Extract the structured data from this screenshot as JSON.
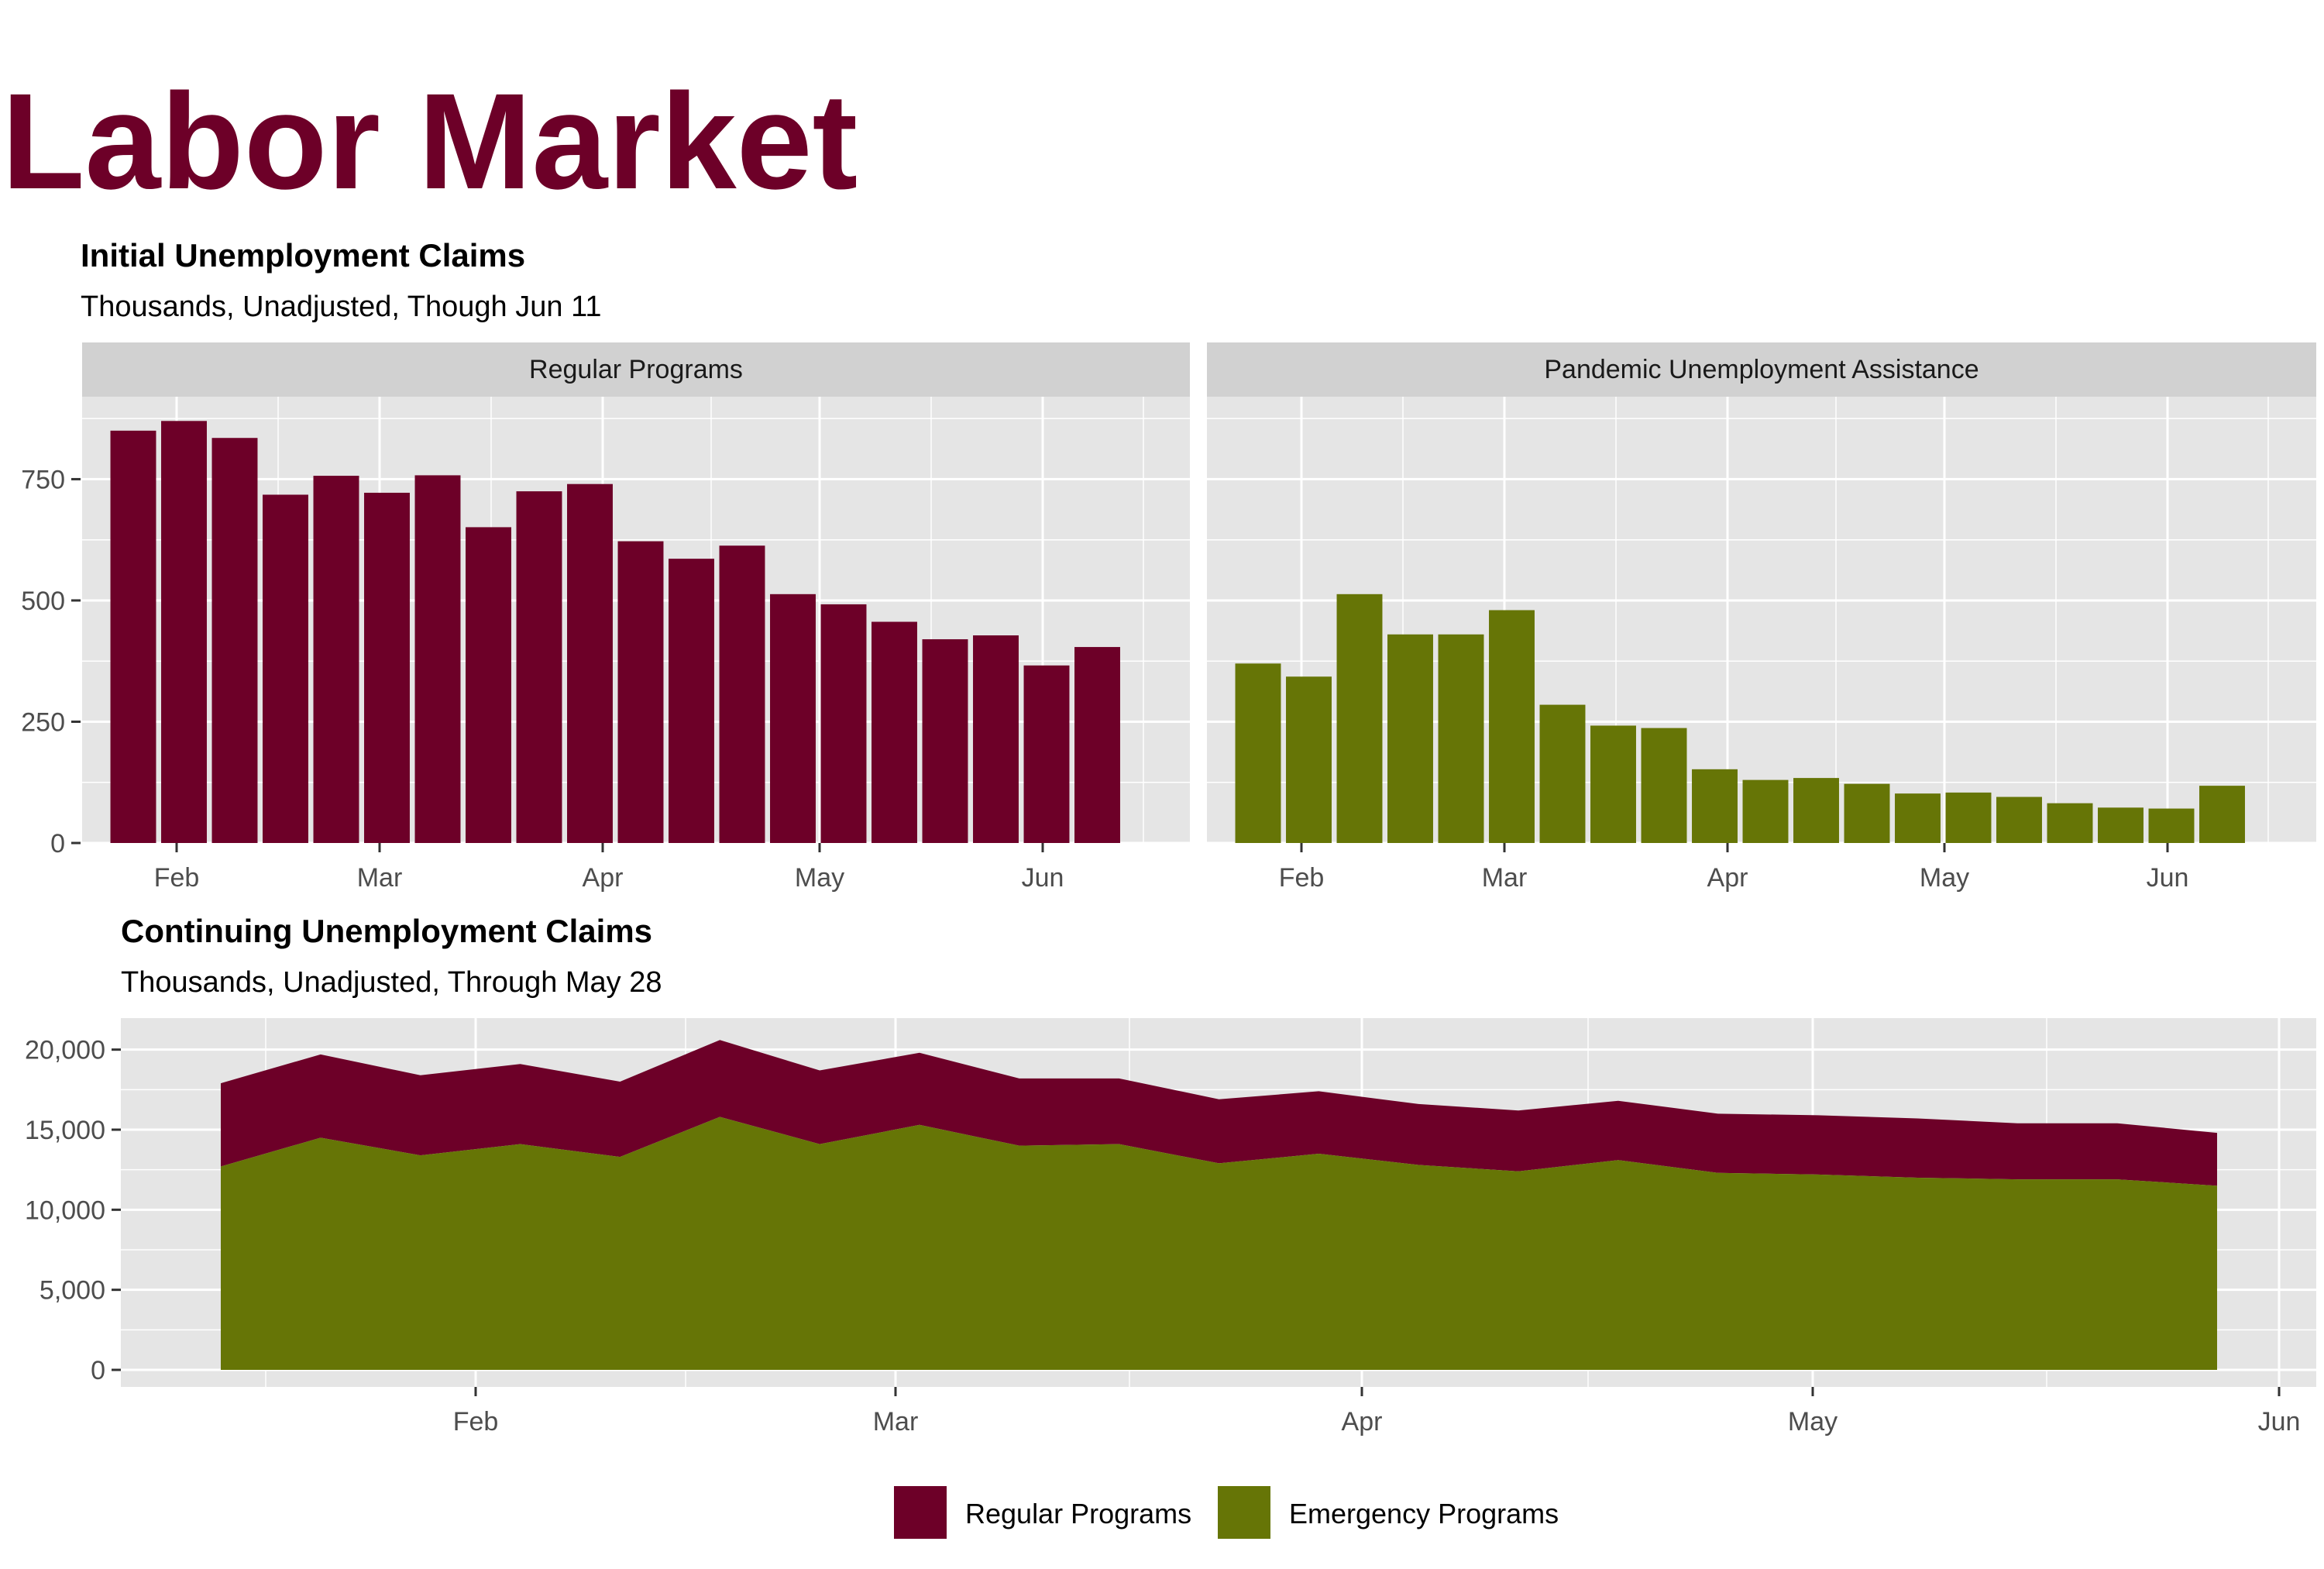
{
  "title": "Labor Market",
  "colors": {
    "regular": "#6d0028",
    "emergency": "#667506",
    "panel_bg": "#e5e5e5",
    "strip_bg": "#d1d1d1",
    "grid": "#ffffff"
  },
  "chart_data": [
    {
      "type": "bar",
      "title": "Initial Unemployment Claims",
      "subtitle": "Thousands, Unadjusted, Though Jun 11",
      "y_ticks": [
        0,
        250,
        500,
        750
      ],
      "y_tick_labels": [
        "0",
        "250",
        "500",
        "750"
      ],
      "ylim": [
        0,
        920
      ],
      "x_ticks": [
        "Feb",
        "Mar",
        "Apr",
        "May",
        "Jun"
      ],
      "grid": true,
      "facets": [
        {
          "name": "Regular Programs",
          "color": "#6d0028",
          "values": [
            850,
            870,
            835,
            718,
            757,
            722,
            758,
            651,
            725,
            740,
            622,
            586,
            613,
            513,
            492,
            456,
            420,
            428,
            366,
            404
          ]
        },
        {
          "name": "Pandemic Unemployment Assistance",
          "color": "#667506",
          "values": [
            370,
            343,
            513,
            430,
            430,
            480,
            285,
            242,
            237,
            152,
            130,
            134,
            122,
            102,
            104,
            95,
            82,
            73,
            71,
            118
          ]
        }
      ]
    },
    {
      "type": "area",
      "stacked": true,
      "title": "Continuing Unemployment Claims",
      "subtitle": "Thousands, Unadjusted, Through May 28",
      "y_ticks": [
        0,
        5000,
        10000,
        15000,
        20000
      ],
      "y_tick_labels": [
        "0",
        "5,000",
        "10,000",
        "15,000",
        "20,000"
      ],
      "ylim": [
        0,
        21500
      ],
      "x_ticks": [
        "Feb",
        "Mar",
        "Apr",
        "May",
        "Jun"
      ],
      "grid": true,
      "legend_position": "bottom",
      "x": [
        "Jan 9",
        "Jan 16",
        "Jan 23",
        "Jan 30",
        "Feb 6",
        "Feb 13",
        "Feb 20",
        "Feb 27",
        "Mar 6",
        "Mar 13",
        "Mar 20",
        "Mar 27",
        "Apr 3",
        "Apr 10",
        "Apr 17",
        "Apr 24",
        "May 1",
        "May 8",
        "May 15",
        "May 22",
        "May 28"
      ],
      "series": [
        {
          "name": "Regular Programs",
          "color": "#6d0028",
          "values": [
            5200,
            5200,
            5000,
            5000,
            4700,
            4800,
            4600,
            4500,
            4200,
            4100,
            4000,
            3900,
            3800,
            3800,
            3700,
            3700,
            3700,
            3700,
            3500,
            3500,
            3300
          ]
        },
        {
          "name": "Emergency Programs",
          "color": "#667506",
          "values": [
            12700,
            14500,
            13400,
            14100,
            13300,
            15800,
            14100,
            15300,
            14000,
            14100,
            12900,
            13500,
            12800,
            12400,
            13100,
            12300,
            12200,
            12000,
            11900,
            11900,
            11500
          ]
        }
      ]
    }
  ]
}
